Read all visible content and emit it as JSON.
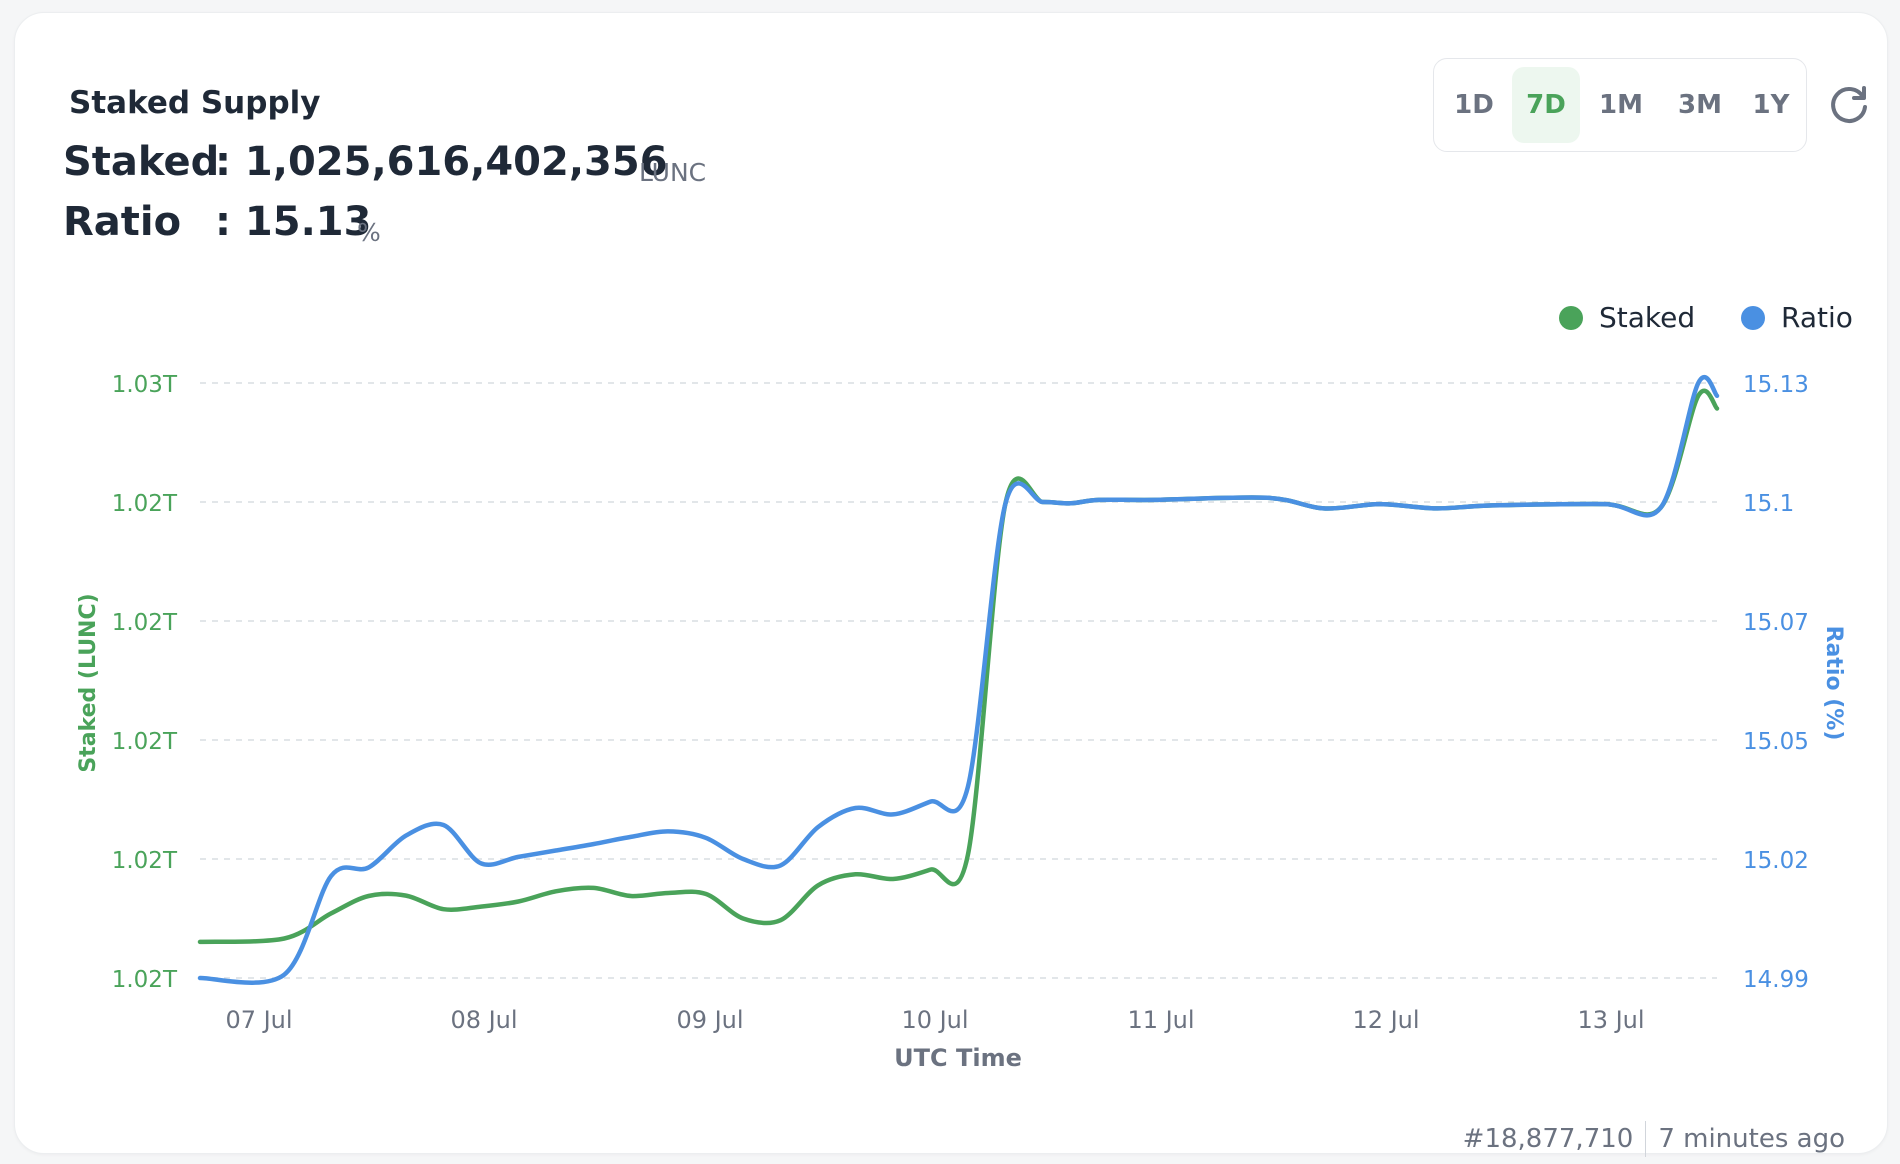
{
  "card": {
    "title": "Staked Supply"
  },
  "stats": {
    "staked_label": "Staked",
    "staked_value": ": 1,025,616,402,356",
    "staked_unit": "LUNC",
    "ratio_label": "Ratio",
    "ratio_value": ": 15.13",
    "ratio_unit": "%"
  },
  "ranges": [
    {
      "label": "1D",
      "active": false
    },
    {
      "label": "7D",
      "active": true
    },
    {
      "label": "1M",
      "active": false
    },
    {
      "label": "3M",
      "active": false
    },
    {
      "label": "1Y",
      "active": false
    }
  ],
  "legend": {
    "staked": "Staked",
    "ratio": "Ratio"
  },
  "footer": {
    "block": "#18,877,710",
    "time_ago": "7 minutes ago"
  },
  "colors": {
    "staked": "#4aa35a",
    "ratio": "#4a90e2",
    "grid": "#d9dde2",
    "axis_text": "#6b7280"
  },
  "chart_data": {
    "type": "line",
    "xlabel": "UTC Time",
    "x_ticks": [
      "07 Jul",
      "08 Jul",
      "09 Jul",
      "10 Jul",
      "11 Jul",
      "12 Jul",
      "13 Jul"
    ],
    "x_range": [
      "2024-07-06T18:00",
      "2024-07-13T12:00"
    ],
    "y_left": {
      "label": "Staked (LUNC)",
      "tick_labels": [
        "1.02T",
        "1.02T",
        "1.02T",
        "1.02T",
        "1.02T",
        "1.03T"
      ]
    },
    "y_right": {
      "label": "Ratio (%)",
      "tick_labels": [
        "14.99",
        "15.02",
        "15.05",
        "15.07",
        "15.1",
        "15.13"
      ],
      "range": [
        14.99,
        15.13
      ]
    },
    "grid": true,
    "legend_position": "top-right",
    "series": [
      {
        "name": "Staked",
        "axis": "left",
        "x": [
          "2024-07-06T18:00",
          "2024-07-07T03:00",
          "2024-07-07T08:00",
          "2024-07-07T12:00",
          "2024-07-07T16:00",
          "2024-07-07T20:00",
          "2024-07-08T00:00",
          "2024-07-08T04:00",
          "2024-07-08T08:00",
          "2024-07-08T12:00",
          "2024-07-08T16:00",
          "2024-07-08T20:00",
          "2024-07-09T00:00",
          "2024-07-09T04:00",
          "2024-07-09T08:00",
          "2024-07-09T12:00",
          "2024-07-09T16:00",
          "2024-07-09T20:00",
          "2024-07-10T00:00",
          "2024-07-10T04:00",
          "2024-07-10T08:00",
          "2024-07-10T12:00",
          "2024-07-10T15:00",
          "2024-07-10T18:00",
          "2024-07-11T00:00",
          "2024-07-11T12:00",
          "2024-07-11T18:00",
          "2024-07-12T00:00",
          "2024-07-12T06:00",
          "2024-07-12T12:00",
          "2024-07-13T00:00",
          "2024-07-13T06:00",
          "2024-07-13T10:00",
          "2024-07-13T12:00"
        ],
        "y": [
          14.9985,
          14.9993,
          15.0052,
          15.0093,
          15.0094,
          15.0062,
          15.0068,
          15.008,
          15.0104,
          15.0112,
          15.0093,
          15.01,
          15.0098,
          15.004,
          15.0036,
          15.0118,
          15.0144,
          15.0133,
          15.0155,
          15.019,
          15.1015,
          15.102,
          15.1017,
          15.1025,
          15.1025,
          15.103,
          15.1005,
          15.1015,
          15.1005,
          15.1012,
          15.1015,
          15.1007,
          15.127,
          15.124
        ]
      },
      {
        "name": "Ratio",
        "axis": "right",
        "x": [
          "2024-07-06T18:00",
          "2024-07-07T03:00",
          "2024-07-07T08:00",
          "2024-07-07T12:00",
          "2024-07-07T16:00",
          "2024-07-07T20:00",
          "2024-07-08T00:00",
          "2024-07-08T04:00",
          "2024-07-08T08:00",
          "2024-07-08T12:00",
          "2024-07-08T16:00",
          "2024-07-08T20:00",
          "2024-07-09T00:00",
          "2024-07-09T04:00",
          "2024-07-09T08:00",
          "2024-07-09T12:00",
          "2024-07-09T16:00",
          "2024-07-09T20:00",
          "2024-07-10T00:00",
          "2024-07-10T04:00",
          "2024-07-10T08:00",
          "2024-07-10T12:00",
          "2024-07-10T15:00",
          "2024-07-10T18:00",
          "2024-07-11T00:00",
          "2024-07-11T12:00",
          "2024-07-11T18:00",
          "2024-07-12T00:00",
          "2024-07-12T06:00",
          "2024-07-12T12:00",
          "2024-07-13T00:00",
          "2024-07-13T06:00",
          "2024-07-13T10:00",
          "2024-07-13T12:00"
        ],
        "y": [
          14.99,
          14.9908,
          15.014,
          15.016,
          15.0235,
          15.026,
          15.017,
          15.0185,
          15.02,
          15.0215,
          15.0232,
          15.0245,
          15.023,
          15.018,
          15.0165,
          15.0255,
          15.03,
          15.0285,
          15.0315,
          15.035,
          15.1015,
          15.102,
          15.1017,
          15.1025,
          15.1025,
          15.103,
          15.1005,
          15.1015,
          15.1005,
          15.1012,
          15.1015,
          15.1007,
          15.13,
          15.127
        ]
      }
    ]
  }
}
